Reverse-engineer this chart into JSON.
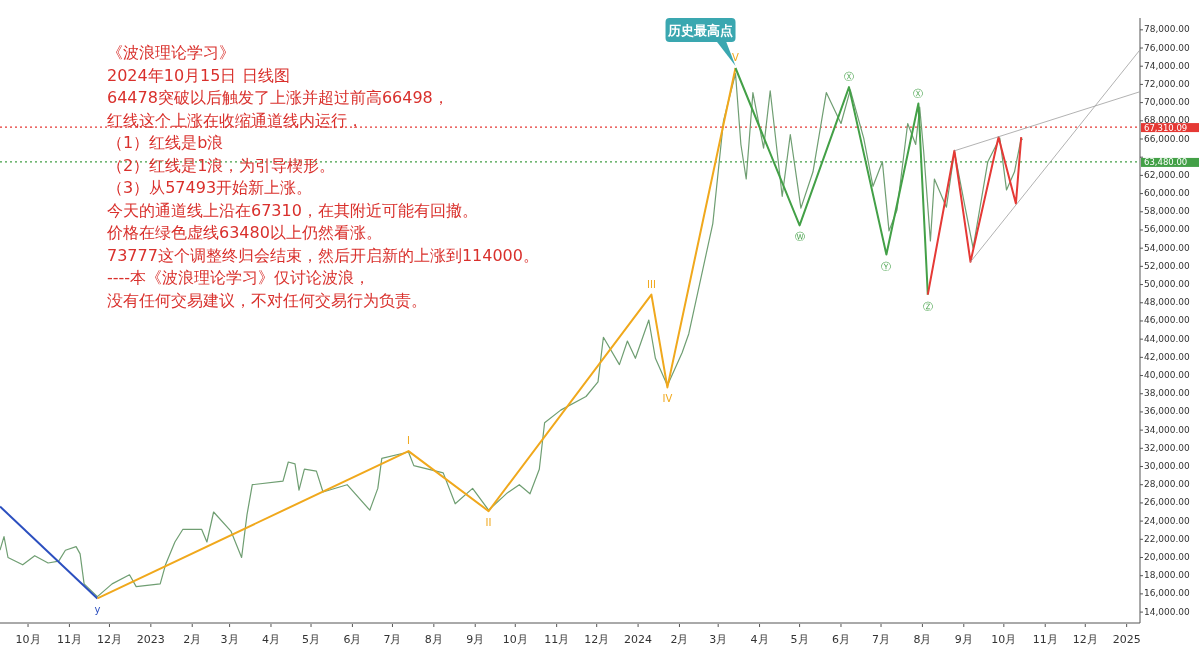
{
  "chart_data": {
    "type": "line",
    "xlim": [
      "2022-09-10",
      "2025-01-11"
    ],
    "ylim": [
      12800,
      79300
    ],
    "xticks": [
      {
        "value": "2022-10",
        "label": "10月"
      },
      {
        "value": "2022-11",
        "label": "11月"
      },
      {
        "value": "2022-12",
        "label": "12月"
      },
      {
        "value": "2023-01",
        "label": "2023"
      },
      {
        "value": "2023-02",
        "label": "2月"
      },
      {
        "value": "2023-03",
        "label": "3月"
      },
      {
        "value": "2023-04",
        "label": "4月"
      },
      {
        "value": "2023-05",
        "label": "5月"
      },
      {
        "value": "2023-06",
        "label": "6月"
      },
      {
        "value": "2023-07",
        "label": "7月"
      },
      {
        "value": "2023-08",
        "label": "8月"
      },
      {
        "value": "2023-09",
        "label": "9月"
      },
      {
        "value": "2023-10",
        "label": "10月"
      },
      {
        "value": "2023-11",
        "label": "11月"
      },
      {
        "value": "2023-12",
        "label": "12月"
      },
      {
        "value": "2024-01",
        "label": "2024"
      },
      {
        "value": "2024-02",
        "label": "2月"
      },
      {
        "value": "2024-03",
        "label": "3月"
      },
      {
        "value": "2024-04",
        "label": "4月"
      },
      {
        "value": "2024-05",
        "label": "5月"
      },
      {
        "value": "2024-06",
        "label": "6月"
      },
      {
        "value": "2024-07",
        "label": "7月"
      },
      {
        "value": "2024-08",
        "label": "8月"
      },
      {
        "value": "2024-09",
        "label": "9月"
      },
      {
        "value": "2024-10",
        "label": "10月"
      },
      {
        "value": "2024-11",
        "label": "11月"
      },
      {
        "value": "2024-12",
        "label": "12月"
      },
      {
        "value": "2025-01",
        "label": "2025"
      }
    ],
    "yticks": [
      {
        "value": 14000,
        "label": "14,000.00"
      },
      {
        "value": 16000,
        "label": "16,000.00"
      },
      {
        "value": 18000,
        "label": "18,000.00"
      },
      {
        "value": 20000,
        "label": "20,000.00"
      },
      {
        "value": 22000,
        "label": "22,000.00"
      },
      {
        "value": 24000,
        "label": "24,000.00"
      },
      {
        "value": 26000,
        "label": "26,000.00"
      },
      {
        "value": 28000,
        "label": "28,000.00"
      },
      {
        "value": 30000,
        "label": "30,000.00"
      },
      {
        "value": 32000,
        "label": "32,000.00"
      },
      {
        "value": 34000,
        "label": "34,000.00"
      },
      {
        "value": 36000,
        "label": "36,000.00"
      },
      {
        "value": 38000,
        "label": "38,000.00"
      },
      {
        "value": 40000,
        "label": "40,000.00"
      },
      {
        "value": 42000,
        "label": "42,000.00"
      },
      {
        "value": 44000,
        "label": "44,000.00"
      },
      {
        "value": 46000,
        "label": "46,000.00"
      },
      {
        "value": 48000,
        "label": "48,000.00"
      },
      {
        "value": 50000,
        "label": "50,000.00"
      },
      {
        "value": 52000,
        "label": "52,000.00"
      },
      {
        "value": 54000,
        "label": "54,000.00"
      },
      {
        "value": 56000,
        "label": "56,000.00"
      },
      {
        "value": 58000,
        "label": "58,000.00"
      },
      {
        "value": 60000,
        "label": "60,000.00"
      },
      {
        "value": 62000,
        "label": "62,000.00"
      },
      {
        "value": 64000,
        "label": null
      },
      {
        "value": 66000,
        "label": "66,000.00"
      },
      {
        "value": 68000,
        "label": "68,000.00"
      },
      {
        "value": 70000,
        "label": "70,000.00"
      },
      {
        "value": 72000,
        "label": "72,000.00"
      },
      {
        "value": 74000,
        "label": "74,000.00"
      },
      {
        "value": 76000,
        "label": "76,000.00"
      },
      {
        "value": 78000,
        "label": "78,000.00"
      }
    ],
    "series": [
      {
        "color": "#6f9e72",
        "x": [
          "2022-09-10",
          "2022-09-13",
          "2022-09-16",
          "2022-09-27",
          "2022-10-06",
          "2022-10-16",
          "2022-10-24",
          "2022-10-29",
          "2022-11-06",
          "2022-11-09",
          "2022-11-12",
          "2022-11-22",
          "2022-12-03",
          "2022-12-16",
          "2022-12-21",
          "2023-01-08",
          "2023-01-12",
          "2023-01-19",
          "2023-01-25",
          "2023-02-08",
          "2023-02-12",
          "2023-02-17",
          "2023-03-02",
          "2023-03-10",
          "2023-03-14",
          "2023-03-18",
          "2023-04-10",
          "2023-04-14",
          "2023-04-19",
          "2023-04-22",
          "2023-04-26",
          "2023-05-05",
          "2023-05-10",
          "2023-05-28",
          "2023-06-14",
          "2023-06-20",
          "2023-06-23",
          "2023-07-13",
          "2023-07-17",
          "2023-08-08",
          "2023-08-17",
          "2023-08-30",
          "2023-09-11",
          "2023-09-25",
          "2023-10-04",
          "2023-10-12",
          "2023-10-19",
          "2023-10-23",
          "2023-11-04",
          "2023-11-23",
          "2023-12-02",
          "2023-12-06",
          "2023-12-18",
          "2023-12-24",
          "2023-12-30",
          "2024-01-09",
          "2024-01-14",
          "2024-01-23",
          "2024-02-03",
          "2024-02-08",
          "2024-02-26",
          "2024-03-05",
          "2024-03-14",
          "2024-03-18",
          "2024-03-22",
          "2024-03-27",
          "2024-04-04",
          "2024-04-09",
          "2024-04-18",
          "2024-04-24",
          "2024-05-02",
          "2024-05-11",
          "2024-05-21",
          "2024-06-01",
          "2024-06-08",
          "2024-06-18",
          "2024-06-25",
          "2024-07-02",
          "2024-07-07",
          "2024-07-13",
          "2024-07-21",
          "2024-07-27",
          "2024-07-30",
          "2024-08-02",
          "2024-08-07",
          "2024-08-10",
          "2024-08-19",
          "2024-08-25",
          "2024-09-02",
          "2024-09-08",
          "2024-09-19",
          "2024-09-28",
          "2024-10-03",
          "2024-10-09",
          "2024-10-14",
          "2024-10-15"
        ],
        "values": [
          20800,
          22300,
          20000,
          19200,
          20200,
          19400,
          19600,
          20800,
          21200,
          20400,
          17100,
          15700,
          17100,
          18100,
          16800,
          17100,
          19200,
          21700,
          23100,
          23100,
          21700,
          25000,
          22900,
          20000,
          24700,
          28000,
          28400,
          30500,
          30300,
          27400,
          29700,
          29500,
          27200,
          28000,
          25200,
          27600,
          30900,
          31600,
          30100,
          29300,
          25900,
          27600,
          25200,
          27100,
          28000,
          27000,
          29700,
          34800,
          36200,
          37700,
          39300,
          44200,
          41200,
          43800,
          41900,
          46100,
          41900,
          38900,
          42500,
          44600,
          56700,
          68000,
          73200,
          65400,
          61600,
          71100,
          65000,
          71300,
          59700,
          66500,
          58400,
          62400,
          71100,
          67700,
          71400,
          66100,
          60800,
          63500,
          55900,
          58200,
          67700,
          65400,
          69500,
          64600,
          54800,
          61600,
          58500,
          64600,
          58500,
          54000,
          63500,
          66100,
          60400,
          62400,
          66100,
          65900
        ]
      },
      {
        "color": "#2b4fbf",
        "x": [
          "2022-09-10",
          "2022-11-22"
        ],
        "values": [
          25600,
          15500
        ]
      },
      {
        "color": "#f0a81c",
        "x": [
          "2022-11-22",
          "2023-07-13",
          "2023-09-11",
          "2024-01-11",
          "2024-01-23",
          "2024-03-14"
        ],
        "values": [
          15500,
          31700,
          25100,
          48900,
          38700,
          73800
        ]
      },
      {
        "color": "#43a047",
        "x": [
          "2024-03-14",
          "2024-05-01",
          "2024-06-07",
          "2024-07-05",
          "2024-07-29",
          "2024-08-05"
        ],
        "values": [
          73800,
          56500,
          71700,
          53300,
          69900,
          48900
        ]
      },
      {
        "color": "#e53935",
        "x": [
          "2024-08-05",
          "2024-08-25",
          "2024-09-06",
          "2024-09-27",
          "2024-10-10",
          "2024-10-14"
        ],
        "values": [
          48900,
          64700,
          52500,
          66200,
          58900,
          66200
        ]
      },
      {
        "color": "#9e9e9e",
        "x": [
          "2024-08-25",
          "2025-01-11"
        ],
        "values": [
          64700,
          71200
        ]
      },
      {
        "color": "#9e9e9e",
        "x": [
          "2024-09-06",
          "2025-01-11"
        ],
        "values": [
          52500,
          75800
        ]
      }
    ],
    "ref_lines": [
      {
        "axis": "y",
        "value": 67310.09,
        "label": "67,310.09",
        "color": "#e53935",
        "line_style": "dotted"
      },
      {
        "axis": "y",
        "value": 63480,
        "label": "63,480.00",
        "color": "#43a047",
        "line_style": "dotted"
      }
    ],
    "annotations": [
      "《波浪理论学习》",
      "2024年10月15日 日线图",
      "64478突破以后触发了上涨并超过前高66498，",
      "红线这个上涨在收缩通道线内运行，",
      "（1）红线是b浪",
      "（2）红线是1浪，为引导楔形。",
      "（3）从57493开始新上涨。",
      "今天的通道线上沿在67310，在其附近可能有回撤。",
      "价格在绿色虚线63480以上仍然看涨。",
      "73777这个调整终归会结束，然后开启新的上涨到114000。",
      "----本《波浪理论学习》仅讨论波浪，",
      "没有任何交易建议，不对任何交易行为负责。",
      {
        "text": "历史最高点",
        "x": "2024-03-14",
        "y": 73800
      },
      {
        "text": "y",
        "x": "2022-11-22",
        "y": 15500
      },
      {
        "text": "I",
        "x": "2023-07-13",
        "y": 31700
      },
      {
        "text": "II",
        "x": "2023-09-11",
        "y": 25100
      },
      {
        "text": "III",
        "x": "2024-01-11",
        "y": 48900
      },
      {
        "text": "IV",
        "x": "2024-01-23",
        "y": 38700
      },
      {
        "text": "V",
        "x": "2024-03-14",
        "y": 73800
      },
      {
        "text": "Ⓦ",
        "x": "2024-05-01",
        "y": 56500
      },
      {
        "text": "Ⓧ",
        "x": "2024-06-07",
        "y": 71700
      },
      {
        "text": "Ⓨ",
        "x": "2024-07-05",
        "y": 53300
      },
      {
        "text": "Ⓧ",
        "x": "2024-07-29",
        "y": 69900
      },
      {
        "text": "Ⓩ",
        "x": "2024-08-05",
        "y": 48900
      }
    ],
    "grid": false
  }
}
